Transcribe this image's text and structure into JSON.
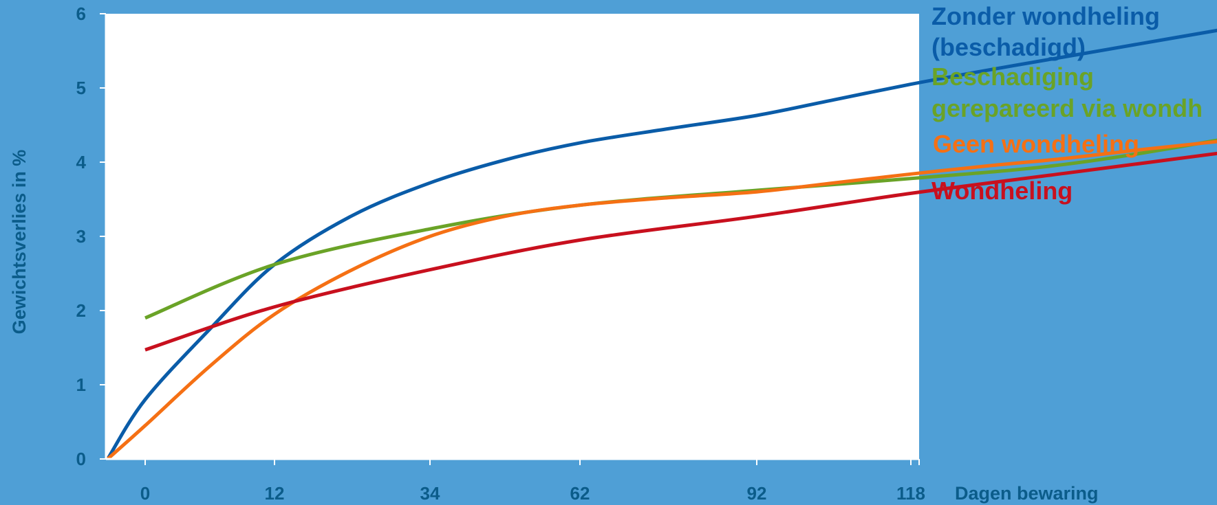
{
  "chart_data": {
    "type": "line",
    "title": "",
    "xlabel": "Dagen bewaring",
    "ylabel": "Gewichtsverlies in %",
    "categories": [
      "0",
      "12",
      "34",
      "62",
      "92",
      "118"
    ],
    "yticks": [
      "0",
      "1",
      "2",
      "3",
      "4",
      "5",
      "6"
    ],
    "ylim": [
      0,
      6
    ],
    "grid": false,
    "legend": "right",
    "series": [
      {
        "name": "Zonder wondheling (beschadigd)",
        "color": "#0a5ca8",
        "points": [
          [
            -0.29,
            0
          ],
          [
            0,
            0.8
          ],
          [
            0.5,
            1.75
          ],
          [
            1,
            2.62
          ],
          [
            1.5,
            3.28
          ],
          [
            2,
            3.72
          ],
          [
            2.5,
            4.03
          ],
          [
            3,
            4.26
          ],
          [
            3.5,
            4.45
          ],
          [
            4,
            4.63
          ],
          [
            4.5,
            4.84
          ],
          [
            5,
            5.05
          ],
          [
            5.5,
            5.24
          ],
          [
            6,
            5.42
          ],
          [
            6.5,
            5.6
          ],
          [
            7,
            5.78
          ],
          [
            7.5,
            5.96
          ],
          [
            7.5,
            6.0
          ]
        ]
      },
      {
        "name": "Beschadiging gerepareerd via wondheling",
        "color": "#6aa327",
        "points": [
          [
            0,
            1.9
          ],
          [
            1,
            2.62
          ],
          [
            2,
            3.1
          ],
          [
            3,
            3.42
          ],
          [
            4,
            3.62
          ],
          [
            5,
            3.78
          ],
          [
            6,
            3.97
          ],
          [
            7,
            4.3
          ],
          [
            8,
            4.7
          ],
          [
            8.43,
            4.92
          ]
        ]
      },
      {
        "name": "Geen wondheling",
        "color": "#f57014",
        "points": [
          [
            -0.29,
            0
          ],
          [
            0,
            0.45
          ],
          [
            0.5,
            1.25
          ],
          [
            1,
            1.95
          ],
          [
            1.5,
            2.55
          ],
          [
            2,
            3.0
          ],
          [
            2.5,
            3.27
          ],
          [
            3,
            3.42
          ],
          [
            3.5,
            3.52
          ],
          [
            4,
            3.6
          ],
          [
            4.5,
            3.72
          ],
          [
            5,
            3.84
          ],
          [
            5.5,
            3.95
          ],
          [
            6,
            4.05
          ],
          [
            6.5,
            4.17
          ],
          [
            7,
            4.28
          ],
          [
            7.5,
            4.4
          ]
        ]
      },
      {
        "name": "Wondheling",
        "color": "#c8101e",
        "points": [
          [
            0,
            1.47
          ],
          [
            1,
            2.05
          ],
          [
            2,
            2.55
          ],
          [
            3,
            2.95
          ],
          [
            4,
            3.27
          ],
          [
            5,
            3.58
          ],
          [
            6,
            3.85
          ],
          [
            7,
            4.12
          ]
        ]
      }
    ]
  }
}
